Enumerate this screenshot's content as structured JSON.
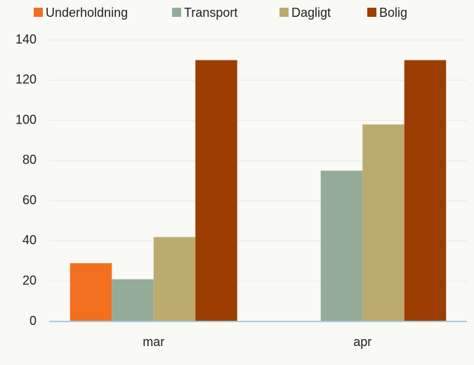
{
  "chart_data": {
    "type": "bar",
    "categories": [
      "mar",
      "apr"
    ],
    "series": [
      {
        "name": "Underholdning",
        "color": "#f37021",
        "values": [
          29,
          0
        ]
      },
      {
        "name": "Transport",
        "color": "#93ab97",
        "values": [
          21,
          75
        ]
      },
      {
        "name": "Dagligt",
        "color": "#bcab6f",
        "values": [
          42,
          98
        ]
      },
      {
        "name": "Bolig",
        "color": "#9c3d02",
        "values": [
          130,
          130
        ]
      }
    ],
    "ylim": [
      0,
      140
    ],
    "yticks": [
      0,
      20,
      40,
      60,
      80,
      100,
      120,
      140
    ],
    "grid": true,
    "legend": "top"
  }
}
